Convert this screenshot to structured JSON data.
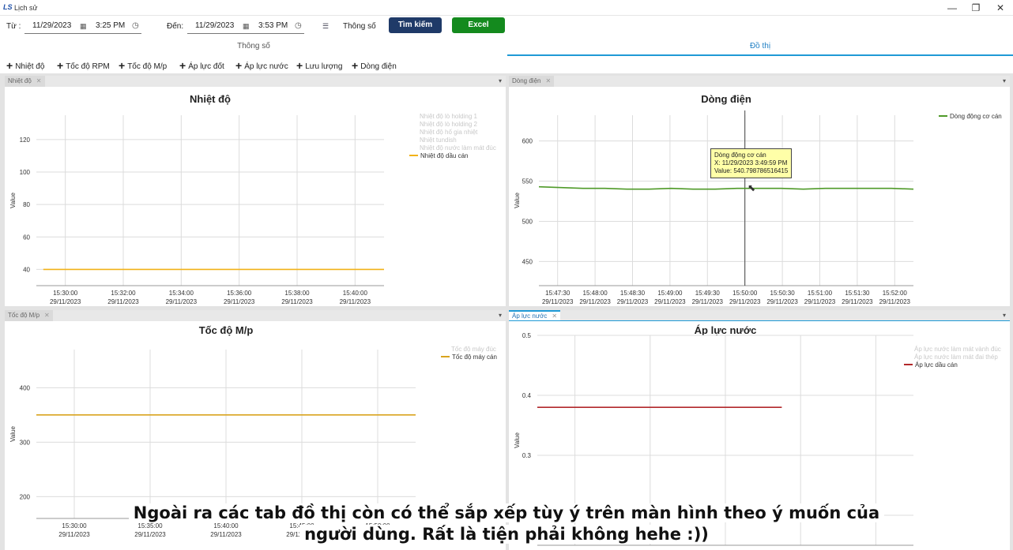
{
  "window": {
    "logo": "LS",
    "title": "Lịch sử",
    "minimize": "—",
    "maximize": "❐",
    "close": "✕"
  },
  "filters": {
    "from_label": "Từ :",
    "from_date": "11/29/2023",
    "from_time": "3:25 PM",
    "to_label": "Đến:",
    "to_date": "11/29/2023",
    "to_time": "3:53 PM",
    "param_label": "Thông số",
    "search_label": "Tìm kiếm",
    "excel_label": "Excel",
    "calendar_icon": "calendar-icon",
    "clock_icon": "clock-icon"
  },
  "tabs": [
    {
      "label": "Thông số",
      "active": false
    },
    {
      "label": "Đồ thị",
      "active": true
    }
  ],
  "toolbar": {
    "items": [
      "Nhiệt độ",
      "Tốc độ RPM",
      "Tốc độ M/p",
      "Áp lực đốt",
      "Áp lực nước",
      "Lưu lượng",
      "Dòng điện"
    ]
  },
  "panels": {
    "temp": {
      "tab": "Nhiệt độ"
    },
    "current": {
      "tab": "Dòng điện"
    },
    "speed": {
      "tab": "Tốc độ M/p"
    },
    "pressure": {
      "tab": "Áp lực nước"
    }
  },
  "tooltip": {
    "line1": "Dòng động cơ cán",
    "line2": "X: 11/29/2023 3:49:59 PM",
    "line3": "Value: 540.798786516415"
  },
  "caption": {
    "line1": "Ngoài ra các tab đồ thị còn có thể sắp xếp tùy ý trên màn hình theo ý muốn của",
    "line2": "người dùng. Rất là tiện phải không hehe :))"
  },
  "chart_data": [
    {
      "id": "temp",
      "type": "line",
      "title": "Nhiệt độ",
      "ylabel": "Value",
      "xlabel": "",
      "ylim": [
        30,
        135
      ],
      "yticks": [
        40,
        60,
        80,
        100,
        120
      ],
      "x_ticks": [
        "15:30:00",
        "15:32:00",
        "15:34:00",
        "15:36:00",
        "15:38:00",
        "15:40:00"
      ],
      "x_tick_dates": "29/11/2023",
      "legend_position": "top-right",
      "series": [
        {
          "name": "Nhiệt độ lò holding 1",
          "color": "#d0d0d0",
          "visible": false,
          "values": []
        },
        {
          "name": "Nhiệt độ lò holding 2",
          "color": "#d0d0d0",
          "visible": false,
          "values": []
        },
        {
          "name": "Nhiệt độ hố gia nhiệt",
          "color": "#d0d0d0",
          "visible": false,
          "values": []
        },
        {
          "name": "Nhiệt tundish",
          "color": "#d0d0d0",
          "visible": false,
          "values": []
        },
        {
          "name": "Nhiệt độ nước làm mát đúc",
          "color": "#d0d0d0",
          "visible": false,
          "values": []
        },
        {
          "name": "Nhiệt độ dầu cán",
          "color": "#f2b218",
          "visible": true,
          "values": [
            40,
            40,
            40,
            40,
            40,
            40,
            40
          ]
        }
      ]
    },
    {
      "id": "current",
      "type": "line",
      "title": "Dòng điện",
      "ylabel": "Value",
      "xlabel": "",
      "ylim": [
        420,
        632
      ],
      "yticks": [
        450,
        500,
        550,
        600
      ],
      "x_ticks": [
        "15:47:30",
        "15:48:00",
        "15:48:30",
        "15:49:00",
        "15:49:30",
        "15:50:00",
        "15:50:30",
        "15:51:00",
        "15:51:30",
        "15:52:00"
      ],
      "x_tick_dates": "29/11/2023",
      "legend_position": "top-right",
      "crosshair_x": "15:50:00",
      "series": [
        {
          "name": "Dòng động cơ cán",
          "color": "#4f9a28",
          "visible": true,
          "values": [
            543,
            542,
            541,
            541,
            540,
            540,
            541,
            540,
            540,
            541,
            541,
            541,
            540,
            541,
            541,
            541,
            541,
            540
          ]
        }
      ]
    },
    {
      "id": "speed",
      "type": "line",
      "title": "Tốc độ M/p",
      "ylabel": "Value",
      "xlabel": "",
      "ylim": [
        160,
        470
      ],
      "yticks": [
        200,
        300,
        400
      ],
      "x_ticks": [
        "15:30:00",
        "15:35:00",
        "15:40:00",
        "15:45:00",
        "15:50:00"
      ],
      "x_tick_dates": "29/11/2023",
      "legend_position": "top-right",
      "series": [
        {
          "name": "Tốc độ máy đúc",
          "color": "#d0d0d0",
          "visible": false,
          "values": []
        },
        {
          "name": "Tốc độ máy cán",
          "color": "#d9a41e",
          "visible": true,
          "values": [
            350,
            350,
            350,
            350,
            350,
            350
          ]
        }
      ]
    },
    {
      "id": "pressure",
      "type": "line",
      "title": "Áp lực nước",
      "ylabel": "Value",
      "xlabel": "",
      "ylim": [
        0.15,
        0.5
      ],
      "yticks": [
        0.2,
        0.3,
        0.4,
        0.5
      ],
      "x_ticks": [
        "",
        "",
        "",
        "",
        ""
      ],
      "x_tick_dates": "29/11/2023",
      "legend_position": "top-right",
      "series": [
        {
          "name": "Áp lực nước làm mát vành đúc",
          "color": "#d0d0d0",
          "visible": false,
          "values": []
        },
        {
          "name": "Áp lực nước làm mát đai thép",
          "color": "#d0d0d0",
          "visible": false,
          "values": []
        },
        {
          "name": "Áp lực dầu cán",
          "color": "#b2282a",
          "visible": true,
          "values": [
            0.38,
            0.38,
            0.38,
            0.38,
            0.38
          ]
        }
      ]
    }
  ]
}
